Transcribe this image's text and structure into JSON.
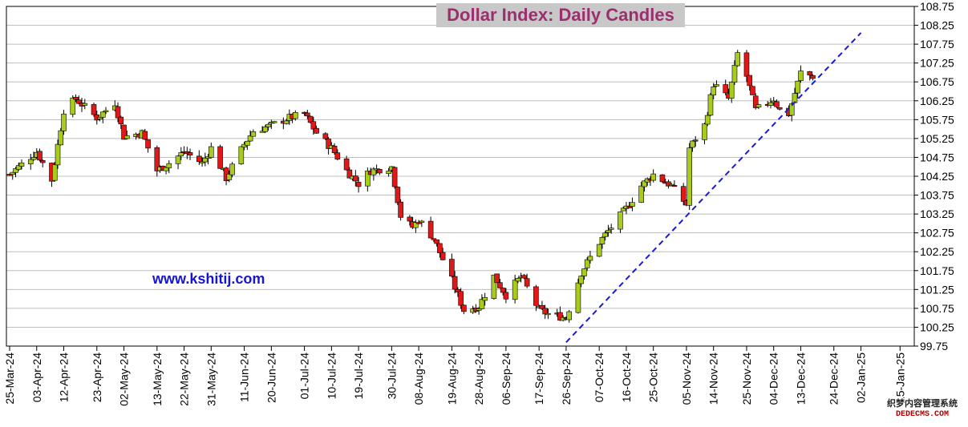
{
  "chart_data": {
    "type": "candlestick",
    "title": "Dollar Index: Daily Candles",
    "y_ticks": [
      "108.75",
      "108.25",
      "107.75",
      "107.25",
      "106.75",
      "106.25",
      "105.75",
      "105.25",
      "104.75",
      "104.25",
      "103.75",
      "103.25",
      "102.75",
      "102.25",
      "101.75",
      "101.25",
      "100.75",
      "100.25",
      "99.75"
    ],
    "ylim": [
      99.75,
      108.75
    ],
    "x_ticks": [
      "25-Mar-24",
      "03-Apr-24",
      "12-Apr-24",
      "23-Apr-24",
      "02-May-24",
      "13-May-24",
      "22-May-24",
      "31-May-24",
      "11-Jun-24",
      "20-Jun-24",
      "01-Jul-24",
      "10-Jul-24",
      "19-Jul-24",
      "30-Jul-24",
      "08-Aug-24",
      "19-Aug-24",
      "28-Aug-24",
      "06-Sep-24",
      "17-Sep-24",
      "26-Sep-24",
      "07-Oct-24",
      "16-Oct-24",
      "25-Oct-24",
      "05-Nov-24",
      "14-Nov-24",
      "25-Nov-24",
      "04-Dec-24",
      "13-Dec-24",
      "24-Dec-24",
      "02-Jan-25",
      "15-Jan-25"
    ],
    "grid": "horizontal",
    "up_color": "#a8cc1c",
    "down_color": "#e01818",
    "trendline": {
      "style": "dashed",
      "color": "#1a1ad6",
      "from": {
        "x": "26-Sep-24",
        "y": 99.85
      },
      "to": {
        "x": "02-Jan-25",
        "y": 108.05
      }
    },
    "path_points": [
      {
        "x": "25-Mar-24",
        "y": 104.3
      },
      {
        "x": "03-Apr-24",
        "y": 104.9
      },
      {
        "x": "08-Apr-24",
        "y": 104.15
      },
      {
        "x": "12-Apr-24",
        "y": 106.0
      },
      {
        "x": "16-Apr-24",
        "y": 106.3
      },
      {
        "x": "23-Apr-24",
        "y": 105.8
      },
      {
        "x": "29-Apr-24",
        "y": 106.2
      },
      {
        "x": "02-May-24",
        "y": 105.3
      },
      {
        "x": "08-May-24",
        "y": 105.4
      },
      {
        "x": "13-May-24",
        "y": 104.4
      },
      {
        "x": "17-May-24",
        "y": 104.6
      },
      {
        "x": "22-May-24",
        "y": 104.9
      },
      {
        "x": "28-May-24",
        "y": 104.6
      },
      {
        "x": "31-May-24",
        "y": 105.0
      },
      {
        "x": "05-Jun-24",
        "y": 104.2
      },
      {
        "x": "11-Jun-24",
        "y": 105.1
      },
      {
        "x": "14-Jun-24",
        "y": 105.45
      },
      {
        "x": "20-Jun-24",
        "y": 105.6
      },
      {
        "x": "26-Jun-24",
        "y": 105.8
      },
      {
        "x": "01-Jul-24",
        "y": 105.9
      },
      {
        "x": "05-Jul-24",
        "y": 105.4
      },
      {
        "x": "10-Jul-24",
        "y": 105.0
      },
      {
        "x": "15-Jul-24",
        "y": 104.4
      },
      {
        "x": "19-Jul-24",
        "y": 104.05
      },
      {
        "x": "23-Jul-24",
        "y": 104.4
      },
      {
        "x": "30-Jul-24",
        "y": 104.5
      },
      {
        "x": "02-Aug-24",
        "y": 103.2
      },
      {
        "x": "06-Aug-24",
        "y": 102.9
      },
      {
        "x": "08-Aug-24",
        "y": 103.1
      },
      {
        "x": "13-Aug-24",
        "y": 102.6
      },
      {
        "x": "19-Aug-24",
        "y": 101.5
      },
      {
        "x": "23-Aug-24",
        "y": 100.7
      },
      {
        "x": "28-Aug-24",
        "y": 100.8
      },
      {
        "x": "02-Sep-24",
        "y": 101.6
      },
      {
        "x": "06-Sep-24",
        "y": 101.1
      },
      {
        "x": "11-Sep-24",
        "y": 101.6
      },
      {
        "x": "17-Sep-24",
        "y": 100.7
      },
      {
        "x": "20-Sep-24",
        "y": 100.6
      },
      {
        "x": "26-Sep-24",
        "y": 100.5
      },
      {
        "x": "01-Oct-24",
        "y": 101.7
      },
      {
        "x": "07-Oct-24",
        "y": 102.5
      },
      {
        "x": "11-Oct-24",
        "y": 102.9
      },
      {
        "x": "16-Oct-24",
        "y": 103.4
      },
      {
        "x": "21-Oct-24",
        "y": 104.0
      },
      {
        "x": "25-Oct-24",
        "y": 104.3
      },
      {
        "x": "31-Oct-24",
        "y": 104.0
      },
      {
        "x": "05-Nov-24",
        "y": 103.5
      },
      {
        "x": "06-Nov-24",
        "y": 105.0
      },
      {
        "x": "11-Nov-24",
        "y": 105.6
      },
      {
        "x": "14-Nov-24",
        "y": 106.7
      },
      {
        "x": "19-Nov-24",
        "y": 106.3
      },
      {
        "x": "22-Nov-24",
        "y": 107.5
      },
      {
        "x": "25-Nov-24",
        "y": 106.9
      },
      {
        "x": "28-Nov-24",
        "y": 106.0
      },
      {
        "x": "04-Dec-24",
        "y": 106.3
      },
      {
        "x": "06-Dec-24",
        "y": 106.0
      },
      {
        "x": "09-Dec-24",
        "y": 105.9
      },
      {
        "x": "13-Dec-24",
        "y": 107.0
      },
      {
        "x": "17-Dec-24",
        "y": 106.9
      }
    ]
  },
  "watermark": {
    "text": "www.kshitij.com",
    "color": "#1515d6"
  },
  "corner_stamp": {
    "line1": "织梦内容管理系统",
    "line2": "DEDECMS.COM"
  }
}
